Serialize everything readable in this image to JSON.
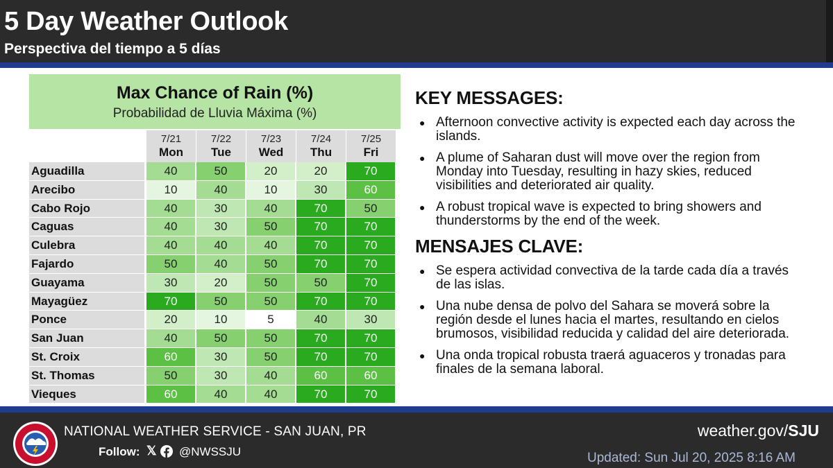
{
  "header": {
    "title": "5 Day Weather Outlook",
    "subtitle": "Perspectiva del tiempo a 5 días"
  },
  "table": {
    "title": "Max Chance of Rain (%)",
    "subtitle": "Probabilidad de Lluvia Máxima (%)",
    "days": [
      {
        "date": "7/21",
        "name": "Mon"
      },
      {
        "date": "7/22",
        "name": "Tue"
      },
      {
        "date": "7/23",
        "name": "Wed"
      },
      {
        "date": "7/24",
        "name": "Thu"
      },
      {
        "date": "7/25",
        "name": "Fri"
      }
    ],
    "rows": [
      {
        "location": "Aguadilla",
        "values": [
          "40",
          "50",
          "20",
          "20",
          "70"
        ]
      },
      {
        "location": "Arecibo",
        "values": [
          "10",
          "40",
          "10",
          "30",
          "60"
        ]
      },
      {
        "location": "Cabo Rojo",
        "values": [
          "40",
          "30",
          "40",
          "70",
          "50"
        ]
      },
      {
        "location": "Caguas",
        "values": [
          "40",
          "30",
          "50",
          "70",
          "70"
        ]
      },
      {
        "location": "Culebra",
        "values": [
          "40",
          "40",
          "40",
          "70",
          "70"
        ]
      },
      {
        "location": "Fajardo",
        "values": [
          "50",
          "40",
          "50",
          "70",
          "70"
        ]
      },
      {
        "location": "Guayama",
        "values": [
          "30",
          "20",
          "50",
          "50",
          "70"
        ]
      },
      {
        "location": "Mayagüez",
        "values": [
          "70",
          "50",
          "50",
          "70",
          "70"
        ]
      },
      {
        "location": "Ponce",
        "values": [
          "20",
          "10",
          "5",
          "40",
          "30"
        ]
      },
      {
        "location": "San Juan",
        "values": [
          "40",
          "50",
          "50",
          "70",
          "70"
        ]
      },
      {
        "location": "St. Croix",
        "values": [
          "60",
          "30",
          "50",
          "70",
          "70"
        ]
      },
      {
        "location": "St. Thomas",
        "values": [
          "50",
          "30",
          "40",
          "60",
          "60"
        ]
      },
      {
        "location": "Vieques",
        "values": [
          "60",
          "40",
          "40",
          "70",
          "70"
        ]
      }
    ],
    "colors": {
      "5": "#ffffff",
      "10": "#e4f6df",
      "20": "#d2efca",
      "30": "#bfe7b3",
      "40": "#a3dc92",
      "50": "#86d070",
      "60": "#5cc044",
      "70": "#2aaa1e"
    }
  },
  "key_messages": {
    "heading_en": "KEY MESSAGES:",
    "items_en": [
      "Afternoon convective activity is expected each day across the islands.",
      "A plume of Saharan dust will move over the region from Monday into Tuesday, resulting in hazy skies, reduced visibilities and deteriorated air quality.",
      "A robust tropical wave is expected to bring showers and thunderstorms by the end of the week."
    ],
    "heading_es": "MENSAJES CLAVE:",
    "items_es": [
      "Se espera actividad convectiva de la tarde cada día a través de las islas.",
      "Una nube densa de polvo del Sahara se moverá sobre la región desde el lunes hacia el martes, resultando en cielos brumosos, visibilidad reducida y calidad del aire deteriorada.",
      "Una onda tropical robusta traerá aguaceros y tronadas para finales de la semana laboral."
    ]
  },
  "footer": {
    "org": "NATIONAL WEATHER SERVICE - SAN JUAN, PR",
    "follow_label": "Follow:",
    "handle": "@NWSSJU",
    "website_prefix": "weather.gov/",
    "website_bold": "SJU",
    "updated": "Updated: Sun Jul 20, 2025 8:16 AM",
    "logo_text": "NATIONAL WEATHER SERVICE"
  }
}
